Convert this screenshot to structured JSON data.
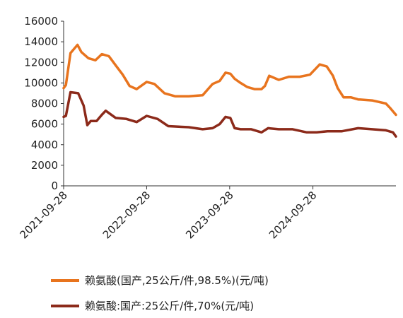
{
  "chart_data": {
    "type": "line",
    "title": "",
    "xlabel": "",
    "ylabel": "",
    "ylim": [
      0,
      16000
    ],
    "yticks": [
      0,
      2000,
      4000,
      6000,
      8000,
      10000,
      12000,
      14000,
      16000
    ],
    "ytick_labels": [
      "0",
      "2000",
      "4000",
      "6000",
      "8000",
      "10000",
      "12000",
      "14000",
      "16000"
    ],
    "xlim": [
      "2021-09-28",
      "2025-09-28"
    ],
    "xticks": [
      "2021-09-28",
      "2022-09-28",
      "2023-09-28",
      "2024-09-28"
    ],
    "grid": false,
    "legend_position": "bottom-left",
    "series": [
      {
        "name": "赖氨酸(国产,25公斤/件,98.5%)(元/吨)",
        "color": "#e8741e",
        "x": [
          "2021-09-28",
          "2021-10-08",
          "2021-10-28",
          "2021-11-28",
          "2021-12-15",
          "2022-01-15",
          "2022-02-15",
          "2022-03-15",
          "2022-04-15",
          "2022-05-15",
          "2022-06-15",
          "2022-07-15",
          "2022-08-15",
          "2022-09-28",
          "2022-11-01",
          "2022-12-15",
          "2023-02-01",
          "2023-04-01",
          "2023-06-01",
          "2023-07-15",
          "2023-08-15",
          "2023-09-10",
          "2023-10-01",
          "2023-10-20",
          "2023-11-15",
          "2023-12-15",
          "2024-01-15",
          "2024-02-15",
          "2024-03-01",
          "2024-03-20",
          "2024-05-01",
          "2024-06-15",
          "2024-08-01",
          "2024-09-15",
          "2024-10-28",
          "2024-11-28",
          "2024-12-25",
          "2025-01-15",
          "2025-02-10",
          "2025-03-15",
          "2025-04-15",
          "2025-06-15",
          "2025-08-15",
          "2025-09-01",
          "2025-09-28"
        ],
        "y": [
          9500,
          9800,
          12900,
          13700,
          13000,
          12400,
          12200,
          12800,
          12600,
          11700,
          10800,
          9700,
          9400,
          10100,
          9900,
          9000,
          8700,
          8700,
          8800,
          9900,
          10200,
          11000,
          10900,
          10400,
          10000,
          9600,
          9400,
          9400,
          9700,
          10700,
          10300,
          10600,
          10600,
          10800,
          11800,
          11600,
          10700,
          9500,
          8600,
          8600,
          8400,
          8300,
          8000,
          7600,
          6900
        ]
      },
      {
        "name": "赖氨酸:国产:25公斤/件,70%(元/吨)",
        "color": "#8c2a1a",
        "x": [
          "2021-09-28",
          "2021-10-08",
          "2021-10-28",
          "2021-12-01",
          "2021-12-25",
          "2022-01-10",
          "2022-01-25",
          "2022-02-20",
          "2022-03-15",
          "2022-04-01",
          "2022-05-15",
          "2022-07-01",
          "2022-08-15",
          "2022-09-28",
          "2022-11-15",
          "2023-01-01",
          "2023-04-01",
          "2023-06-01",
          "2023-07-15",
          "2023-08-15",
          "2023-09-10",
          "2023-10-01",
          "2023-10-20",
          "2023-11-15",
          "2024-01-01",
          "2024-02-15",
          "2024-03-15",
          "2024-05-01",
          "2024-07-01",
          "2024-09-01",
          "2024-10-15",
          "2024-12-01",
          "2025-02-01",
          "2025-04-15",
          "2025-06-15",
          "2025-08-15",
          "2025-09-15",
          "2025-09-28"
        ],
        "y": [
          6700,
          6800,
          9100,
          9000,
          7800,
          5900,
          6300,
          6300,
          6900,
          7300,
          6600,
          6500,
          6200,
          6800,
          6500,
          5800,
          5700,
          5500,
          5600,
          6000,
          6700,
          6600,
          5600,
          5500,
          5500,
          5200,
          5600,
          5500,
          5500,
          5200,
          5200,
          5300,
          5300,
          5600,
          5500,
          5400,
          5200,
          4800
        ]
      }
    ]
  }
}
